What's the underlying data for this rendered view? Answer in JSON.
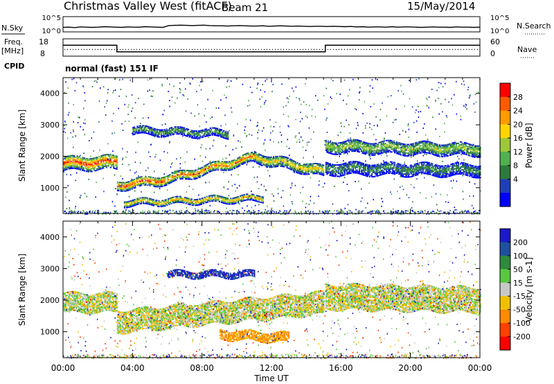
{
  "header": {
    "station": "Christmas Valley West (fitACF)",
    "beam": "Beam 21",
    "date": "15/May/2014"
  },
  "noise_panel": {
    "left_label": "N.Sky",
    "right_label": "N.Search",
    "left_ticks": [
      "10^5",
      "10^0"
    ],
    "right_ticks": [
      "10^5",
      "10^0"
    ],
    "sky_noise_log": [
      1.1,
      1.2,
      1.0,
      1.3,
      1.2,
      1.1,
      1.2,
      1.4,
      1.3,
      1.2,
      1.1,
      1.3,
      1.2,
      1.2,
      1.4,
      1.3,
      1.2,
      1.1,
      1.9,
      2.0,
      2.1,
      2.0,
      1.9,
      2.0,
      2.1,
      1.9,
      1.8,
      1.8,
      1.7,
      1.8,
      1.9,
      1.8,
      1.7,
      1.7,
      1.8,
      1.6,
      1.7,
      1.8,
      1.7,
      1.6,
      1.7,
      1.6,
      1.5,
      1.6,
      1.6,
      1.5,
      1.6,
      1.5,
      1.4,
      1.5,
      1.3,
      1.4,
      1.2,
      1.3,
      1.3,
      1.2,
      1.4,
      1.2,
      1.3,
      1.3,
      1.2,
      1.1,
      1.2,
      1.3,
      1.2,
      1.2,
      1.1,
      1.3,
      1.2,
      1.2,
      1.1,
      1.2
    ]
  },
  "freq_panel": {
    "left_label_1": "Freq.",
    "left_label_2": "[MHz]",
    "right_label": "Nave",
    "left_ticks": [
      "18",
      "8"
    ],
    "right_ticks": [
      "60",
      "0"
    ],
    "freq_steps": [
      {
        "t0": 0,
        "t1": 3.1,
        "mhz": 16
      },
      {
        "t0": 3.1,
        "t1": 15.1,
        "mhz": 10
      },
      {
        "t0": 15.1,
        "t1": 24,
        "mhz": 16
      }
    ],
    "nave": 22
  },
  "cpid": {
    "label": "CPID",
    "value": "normal (fast) 151 IF"
  },
  "power_panel": {
    "ylabel": "Slant Range [km]",
    "colorbar_label": "Power [dB]",
    "colorbar_ticks": [
      "28",
      "24",
      "20",
      "16",
      "12",
      "8",
      "4"
    ],
    "colors": [
      "#0000ff",
      "#1f3fb8",
      "#2e7a3c",
      "#52b04e",
      "#9ec83a",
      "#ffd500",
      "#ff9a00",
      "#ff5a00",
      "#ff0000"
    ]
  },
  "velocity_panel": {
    "ylabel": "Slant Range [km]",
    "colorbar_label": "Velocity [m s-1]",
    "colorbar_ticks": [
      "200",
      "100",
      "50",
      "15",
      "-15",
      "-50",
      "-100",
      "-200"
    ],
    "colors": [
      "#1a1ac8",
      "#2050a0",
      "#2e8a3c",
      "#58c840",
      "#c8c8c8",
      "#f0c000",
      "#ff8a00",
      "#ff4000",
      "#ff0000"
    ]
  },
  "axes": {
    "xlabel": "Time UT",
    "xticks": [
      "00:00",
      "04:00",
      "08:00",
      "12:00",
      "16:00",
      "20:00",
      "00:00"
    ],
    "yticks": [
      "4000",
      "3000",
      "2000",
      "1000"
    ]
  },
  "chart_data": {
    "type": "heatmap",
    "title": "Christmas Valley West (fitACF) Beam 21 15/May/2014",
    "xlabel": "Time UT",
    "ylabel": "Slant Range [km]",
    "xlim_hours": [
      0,
      24
    ],
    "ylim_km": [
      180,
      4500
    ],
    "panels": [
      {
        "name": "Power",
        "unit": "dB",
        "range": [
          0,
          30
        ],
        "echo_bands": [
          {
            "t0": 0.0,
            "t1": 3.1,
            "r_center_start": 1750,
            "r_center_end": 1800,
            "width_km": 450,
            "peak_value": 28
          },
          {
            "t0": 3.1,
            "t1": 6.0,
            "r_center_start": 1050,
            "r_center_end": 1250,
            "width_km": 300,
            "peak_value": 28
          },
          {
            "t0": 6.0,
            "t1": 11.0,
            "r_center_start": 1250,
            "r_center_end": 1950,
            "width_km": 300,
            "peak_value": 26
          },
          {
            "t0": 11.0,
            "t1": 15.0,
            "r_center_start": 1950,
            "r_center_end": 1500,
            "width_km": 350,
            "peak_value": 20
          },
          {
            "t0": 3.5,
            "t1": 11.5,
            "r_center_start": 500,
            "r_center_end": 650,
            "width_km": 200,
            "peak_value": 22
          },
          {
            "t0": 4.0,
            "t1": 9.5,
            "r_center_start": 2800,
            "r_center_end": 2700,
            "width_km": 250,
            "peak_value": 12
          },
          {
            "t0": 15.1,
            "t1": 24.0,
            "r_center_start": 2300,
            "r_center_end": 2200,
            "width_km": 400,
            "peak_value": 16
          },
          {
            "t0": 15.1,
            "t1": 24.0,
            "r_center_start": 1600,
            "r_center_end": 1550,
            "width_km": 400,
            "peak_value": 10
          }
        ]
      },
      {
        "name": "Velocity",
        "unit": "m s-1",
        "range": [
          -200,
          200
        ],
        "echo_bands": [
          {
            "t0": 0.0,
            "t1": 3.1,
            "r_center_start": 1900,
            "r_center_end": 1900,
            "width_km": 600,
            "dominant_value": 0
          },
          {
            "t0": 3.1,
            "t1": 15.0,
            "r_center_start": 1300,
            "r_center_end": 1900,
            "width_km": 700,
            "dominant_value": 0
          },
          {
            "t0": 6.0,
            "t1": 11.0,
            "r_center_start": 2800,
            "r_center_end": 2800,
            "width_km": 200,
            "dominant_value": 150
          },
          {
            "t0": 9.0,
            "t1": 13.0,
            "r_center_start": 900,
            "r_center_end": 800,
            "width_km": 300,
            "dominant_value": -40
          },
          {
            "t0": 15.1,
            "t1": 24.0,
            "r_center_start": 2100,
            "r_center_end": 2000,
            "width_km": 800,
            "dominant_value": 0
          }
        ]
      }
    ]
  }
}
